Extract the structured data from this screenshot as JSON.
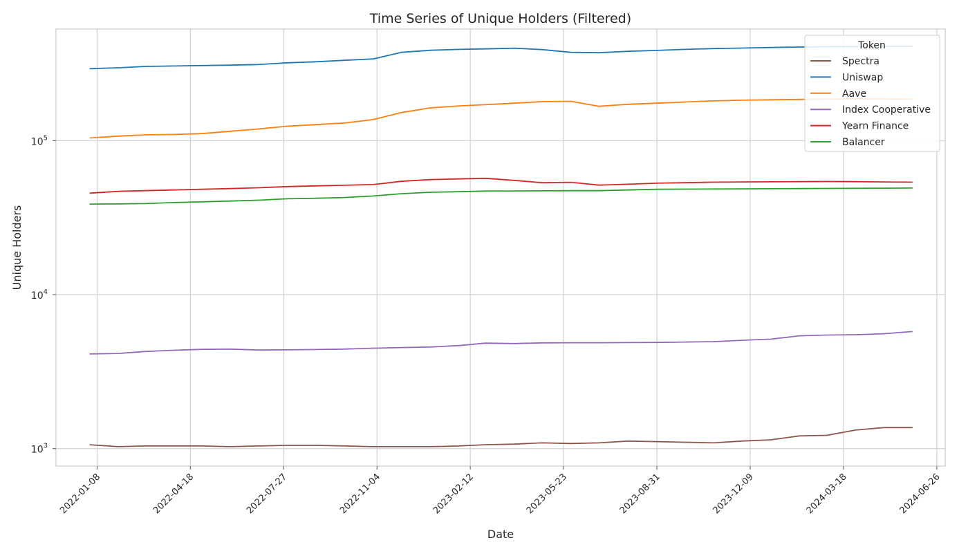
{
  "chart_data": {
    "type": "line",
    "title": "Time Series of Unique Holders (Filtered)",
    "xlabel": "Date",
    "ylabel": "Unique Holders",
    "yscale": "log",
    "ylim": [
      770,
      530000
    ],
    "xlim": [
      "2021-11-25",
      "2024-07-05"
    ],
    "grid": true,
    "legend": {
      "title": "Token",
      "placement": "top-right"
    },
    "x_ticks": [
      "2022-01-08",
      "2022-04-18",
      "2022-07-27",
      "2022-11-04",
      "2023-02-12",
      "2023-05-23",
      "2023-08-31",
      "2023-12-09",
      "2024-03-18",
      "2024-06-26"
    ],
    "y_ticks": [
      {
        "value": 1000,
        "base": "10",
        "exp": "3"
      },
      {
        "value": 10000,
        "base": "10",
        "exp": "4"
      },
      {
        "value": 100000,
        "base": "10",
        "exp": "5"
      }
    ],
    "x": [
      "2021-12-31",
      "2022-01-31",
      "2022-02-28",
      "2022-03-31",
      "2022-04-30",
      "2022-05-31",
      "2022-06-30",
      "2022-07-31",
      "2022-08-31",
      "2022-09-30",
      "2022-10-31",
      "2022-11-30",
      "2022-12-31",
      "2023-01-31",
      "2023-02-28",
      "2023-03-31",
      "2023-04-30",
      "2023-05-31",
      "2023-06-30",
      "2023-07-31",
      "2023-08-31",
      "2023-09-30",
      "2023-10-31",
      "2023-11-30",
      "2023-12-31",
      "2024-01-31",
      "2024-02-29",
      "2024-03-31",
      "2024-04-30",
      "2024-05-31"
    ],
    "series": [
      {
        "name": "Spectra",
        "color": "#8c564b",
        "values": [
          1060,
          1030,
          1040,
          1040,
          1040,
          1030,
          1040,
          1050,
          1050,
          1040,
          1030,
          1030,
          1030,
          1040,
          1060,
          1070,
          1090,
          1080,
          1090,
          1120,
          1110,
          1100,
          1090,
          1120,
          1140,
          1210,
          1220,
          1320,
          1370,
          1370
        ]
      },
      {
        "name": "Uniswap",
        "color": "#1f77b4",
        "values": [
          293000,
          297000,
          303000,
          305000,
          307000,
          309000,
          312000,
          320000,
          325000,
          332000,
          339000,
          374000,
          386000,
          391000,
          394000,
          398000,
          390000,
          374000,
          372000,
          380000,
          385000,
          391000,
          396000,
          399000,
          402000,
          405000,
          407000,
          408000,
          409000,
          410000
        ]
      },
      {
        "name": "Aave",
        "color": "#ff7f0e",
        "values": [
          104000,
          107000,
          109000,
          109500,
          111000,
          115000,
          119000,
          124000,
          127000,
          130000,
          137000,
          152000,
          163000,
          168000,
          171000,
          175000,
          179000,
          180000,
          167000,
          172000,
          175000,
          178000,
          181000,
          183000,
          184000,
          185000,
          186000,
          187000,
          187000,
          186000
        ]
      },
      {
        "name": "Index Cooperative",
        "color": "#9467bd",
        "values": [
          4120,
          4150,
          4270,
          4350,
          4410,
          4430,
          4370,
          4380,
          4400,
          4430,
          4490,
          4530,
          4570,
          4670,
          4840,
          4810,
          4860,
          4870,
          4870,
          4880,
          4890,
          4920,
          4950,
          5050,
          5140,
          5400,
          5460,
          5490,
          5570,
          5760
        ]
      },
      {
        "name": "Yearn Finance",
        "color": "#d62728",
        "values": [
          45600,
          46800,
          47300,
          47800,
          48300,
          48800,
          49400,
          50300,
          50800,
          51300,
          51800,
          54400,
          55800,
          56400,
          56900,
          55200,
          53300,
          53600,
          51400,
          52100,
          52900,
          53300,
          53700,
          53900,
          54000,
          54100,
          54200,
          54100,
          53900,
          53700
        ]
      },
      {
        "name": "Balancer",
        "color": "#2ca02c",
        "values": [
          38700,
          38800,
          39000,
          39600,
          40000,
          40500,
          41000,
          41900,
          42200,
          42700,
          43700,
          45200,
          46200,
          46600,
          47000,
          47100,
          47200,
          47300,
          47300,
          47800,
          48300,
          48400,
          48500,
          48600,
          48700,
          48800,
          48900,
          49000,
          49100,
          49200
        ]
      }
    ]
  }
}
